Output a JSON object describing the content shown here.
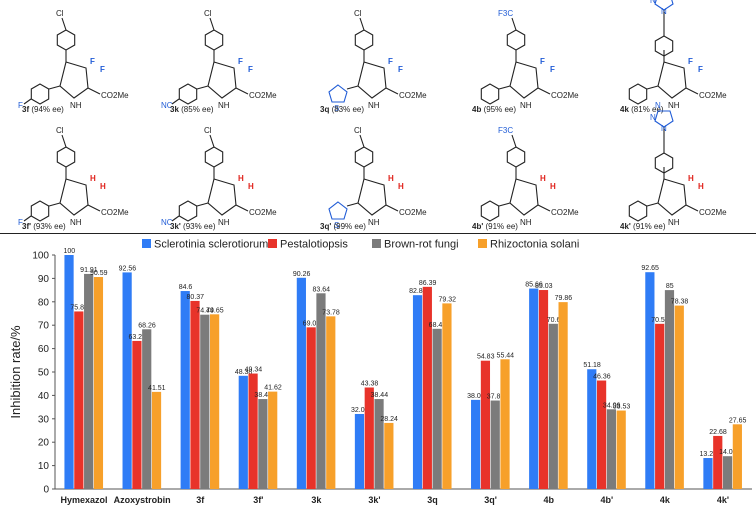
{
  "compounds": [
    {
      "caption_id": "3f",
      "caption_ee": "(94% ee)",
      "top_sub": "Cl",
      "left_sub": "F",
      "ring_sub": "difluoro",
      "aryl": "phenyl"
    },
    {
      "caption_id": "3k",
      "caption_ee": "(85% ee)",
      "top_sub": "Cl",
      "left_sub": "NC",
      "ring_sub": "difluoro",
      "aryl": "phenyl"
    },
    {
      "caption_id": "3q",
      "caption_ee": "(83% ee)",
      "top_sub": "Cl",
      "left_sub": "",
      "ring_sub": "difluoro",
      "aryl": "thiophene"
    },
    {
      "caption_id": "4b",
      "caption_ee": "(95% ee)",
      "top_sub": "F3C",
      "left_sub": "",
      "ring_sub": "difluoro",
      "aryl": "phenyl"
    },
    {
      "caption_id": "4k",
      "caption_ee": "(81% ee)",
      "top_sub": "triazole",
      "left_sub": "",
      "ring_sub": "difluoro",
      "aryl": "phenyl"
    },
    {
      "caption_id": "3f'",
      "caption_ee": "(93% ee)",
      "top_sub": "Cl",
      "left_sub": "F",
      "ring_sub": "dihydro",
      "aryl": "phenyl"
    },
    {
      "caption_id": "3k'",
      "caption_ee": "(93% ee)",
      "top_sub": "Cl",
      "left_sub": "NC",
      "ring_sub": "dihydro",
      "aryl": "phenyl"
    },
    {
      "caption_id": "3q'",
      "caption_ee": "(99% ee)",
      "top_sub": "Cl",
      "left_sub": "",
      "ring_sub": "dihydro",
      "aryl": "thiophene"
    },
    {
      "caption_id": "4b'",
      "caption_ee": "(91% ee)",
      "top_sub": "F3C",
      "left_sub": "",
      "ring_sub": "dihydro",
      "aryl": "phenyl"
    },
    {
      "caption_id": "4k'",
      "caption_ee": "(91% ee)",
      "top_sub": "triazole",
      "left_sub": "",
      "ring_sub": "dihydro",
      "aryl": "phenyl"
    }
  ],
  "atom_labels": {
    "ester": "CO2Me",
    "nh": "NH",
    "fluoro": "F",
    "hydro": "H",
    "thio": "S",
    "triazole_n": "N"
  },
  "colors": {
    "fluorine": "#1f5bd6",
    "hydrogen": "#e0231c",
    "nitrile": "#1f5bd6",
    "chlorine": "#222222",
    "trifluoromethyl": "#1f5bd6",
    "triazole": "#1f5bd6",
    "thiophene": "#1f5bd6"
  },
  "chart_data": {
    "type": "bar",
    "ylabel": "Inhibition rate/%",
    "ylim": [
      0,
      100
    ],
    "yticks": [
      0,
      10,
      20,
      30,
      40,
      50,
      60,
      70,
      80,
      90,
      100
    ],
    "grid": false,
    "legend_position": "top",
    "categories": [
      "Hymexazol",
      "Azoxystrobin",
      "3f",
      "3f'",
      "3k",
      "3k'",
      "3q",
      "3q'",
      "4b",
      "4b'",
      "4k",
      "4k'"
    ],
    "series": [
      {
        "name": "Sclerotinia  sclerotiorum",
        "color": "#2f7cf6",
        "values": [
          100,
          92.56,
          84.6,
          48.38,
          90.26,
          32.06,
          82.83,
          38.09,
          85.66,
          51.18,
          92.65,
          13.24
        ]
      },
      {
        "name": "Pestalotiopsis",
        "color": "#e8332a",
        "values": [
          75.88,
          63.28,
          80.37,
          49.34,
          69.09,
          43.38,
          86.39,
          54.83,
          85.03,
          46.36,
          70.59,
          22.68
        ]
      },
      {
        "name": "Brown-rot fungi",
        "color": "#7b7b7b",
        "values": [
          91.91,
          68.26,
          74.49,
          38.44,
          83.64,
          38.44,
          68.46,
          37.81,
          70.6,
          34.06,
          85,
          14.02
        ]
      },
      {
        "name": "Rhizoctonia solani",
        "color": "#f7a02a",
        "values": [
          90.59,
          41.51,
          74.65,
          41.62,
          73.78,
          28.24,
          79.32,
          55.44,
          79.86,
          33.53,
          78.38,
          27.65
        ]
      }
    ],
    "labels": [
      [
        "100",
        "92.56",
        "84.6",
        "48.38",
        "90.26",
        "32.06",
        "82.83",
        "38.09",
        "85.66",
        "51.18",
        "92.65",
        "13.24"
      ],
      [
        "75.88",
        "63.28",
        "80.37",
        "49.34",
        "69.09",
        "43.38",
        "86.39",
        "54.83",
        "85.03",
        "46.36",
        "70.59",
        "22.68"
      ],
      [
        "91.91",
        "68.26",
        "74.49",
        "38.44",
        "83.64",
        "38.44",
        "68.46",
        "37.81",
        "70.6",
        "34.06",
        "85",
        "14.02"
      ],
      [
        "90.59",
        "41.51",
        "74.65",
        "41.62",
        "73.78",
        "28.24",
        "79.32",
        "55.44",
        "79.86",
        "33.53",
        "78.38",
        "27.65"
      ]
    ]
  }
}
